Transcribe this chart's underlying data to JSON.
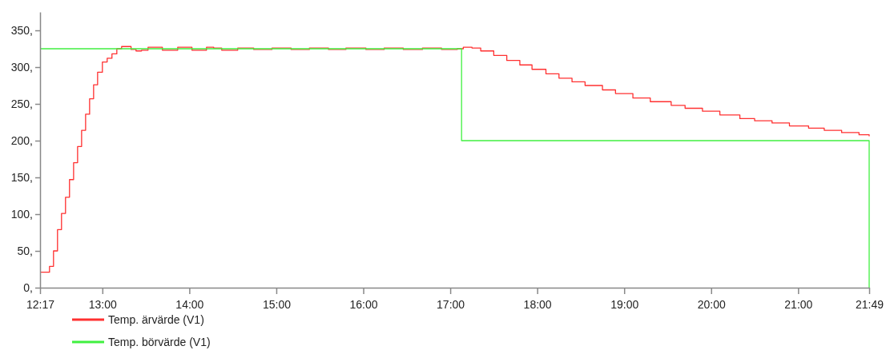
{
  "chart_data": {
    "type": "step",
    "legend": "bottom left",
    "xlim": [
      12.2833,
      21.8167
    ],
    "ylim": [
      0,
      375
    ],
    "xticks": [
      {
        "value": 12.2833,
        "label": "12:17"
      },
      {
        "value": 13,
        "label": "13:00"
      },
      {
        "value": 14,
        "label": "14:00"
      },
      {
        "value": 15,
        "label": "15:00"
      },
      {
        "value": 16,
        "label": "16:00"
      },
      {
        "value": 17,
        "label": "17:00"
      },
      {
        "value": 18,
        "label": "18:00"
      },
      {
        "value": 19,
        "label": "19:00"
      },
      {
        "value": 20,
        "label": "20:00"
      },
      {
        "value": 21,
        "label": "21:00"
      },
      {
        "value": 21.8167,
        "label": "21:49"
      }
    ],
    "yticks": [
      {
        "value": 0,
        "label": "0,"
      },
      {
        "value": 50,
        "label": "50,"
      },
      {
        "value": 100,
        "label": "100,"
      },
      {
        "value": 150,
        "label": "150,"
      },
      {
        "value": 200,
        "label": "200,"
      },
      {
        "value": 250,
        "label": "250,"
      },
      {
        "value": 300,
        "label": "300,"
      },
      {
        "value": 350,
        "label": "350,"
      }
    ],
    "series": [
      {
        "name": "Temp. ärvärde (V1)",
        "color": "#ff3030",
        "x": [
          12.2833,
          12.346,
          12.392,
          12.438,
          12.484,
          12.53,
          12.576,
          12.622,
          12.669,
          12.715,
          12.761,
          12.807,
          12.853,
          12.899,
          12.945,
          13.0,
          13.055,
          13.11,
          13.166,
          13.221,
          13.276,
          13.33,
          13.387,
          13.45,
          13.525,
          13.608,
          13.69,
          13.77,
          13.866,
          13.95,
          14.03,
          14.114,
          14.197,
          14.28,
          14.372,
          14.464,
          14.556,
          14.648,
          14.74,
          14.85,
          14.95,
          15.05,
          15.17,
          15.28,
          15.38,
          15.48,
          15.6,
          15.7,
          15.8,
          15.92,
          16.03,
          16.13,
          16.24,
          16.35,
          16.46,
          16.57,
          16.68,
          16.79,
          16.9,
          17.0,
          17.08,
          17.15,
          17.25,
          17.35,
          17.5,
          17.65,
          17.8,
          17.94,
          18.1,
          18.25,
          18.4,
          18.55,
          18.75,
          18.9,
          19.1,
          19.3,
          19.54,
          19.7,
          19.9,
          20.1,
          20.33,
          20.5,
          20.7,
          20.9,
          21.12,
          21.3,
          21.5,
          21.7,
          21.8167
        ],
        "values": [
          21,
          21,
          29,
          50,
          79,
          101,
          123,
          147,
          170,
          192,
          214,
          236,
          257,
          276,
          293,
          307,
          312,
          318,
          325,
          328,
          328,
          324,
          322,
          323,
          327,
          327,
          323,
          323,
          327,
          327,
          323,
          323,
          327,
          326,
          323,
          323,
          326,
          326,
          324,
          324,
          326,
          326,
          324,
          324,
          326,
          326,
          324,
          324,
          326,
          326,
          324,
          324,
          326,
          326,
          324,
          324,
          326,
          326,
          324,
          324,
          325,
          327,
          326,
          322,
          316,
          309,
          303,
          297,
          291,
          285,
          280,
          275,
          269,
          264,
          258,
          253,
          248,
          244,
          240,
          235,
          230,
          227,
          224,
          220,
          217,
          214,
          211,
          208,
          206
        ]
      },
      {
        "name": "Temp. börvärde (V1)",
        "color": "#40f040",
        "x": [
          12.2833,
          17.13,
          21.8167
        ],
        "values": [
          325,
          200,
          0
        ]
      }
    ]
  }
}
